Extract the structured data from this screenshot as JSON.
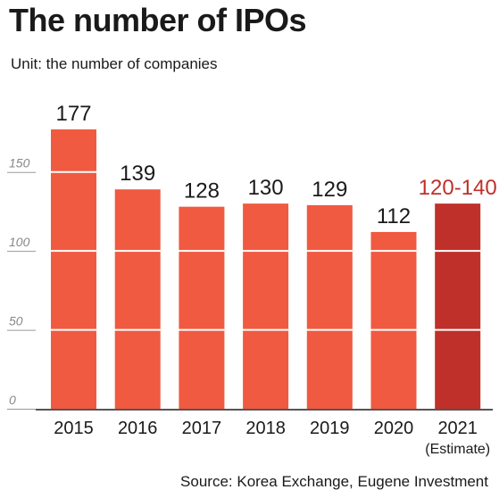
{
  "title": "The number of IPOs",
  "subtitle": "Unit: the number of companies",
  "source": "Source: Korea Exchange, Eugene Investment",
  "colors": {
    "bar": "#F05A40",
    "bar_highlight": "#C0302A",
    "label_highlight": "#C0302A",
    "grid": "#ffffff",
    "axis": "#555555"
  },
  "chart_data": {
    "type": "bar",
    "categories": [
      "2015",
      "2016",
      "2017",
      "2018",
      "2019",
      "2020",
      "2021"
    ],
    "category_notes": [
      "",
      "",
      "",
      "",
      "",
      "",
      "(Estimate)"
    ],
    "values": [
      177,
      139,
      128,
      130,
      129,
      112,
      130
    ],
    "value_labels": [
      "177",
      "139",
      "128",
      "130",
      "129",
      "112",
      "120-140"
    ],
    "highlight_index": 6,
    "yticks": [
      0,
      50,
      100,
      150
    ],
    "ylim": [
      0,
      177
    ],
    "grid": true
  }
}
